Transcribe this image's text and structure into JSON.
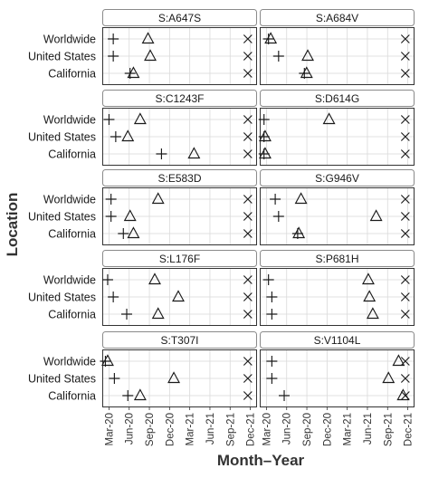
{
  "chart_data": {
    "type": "scatter",
    "facet_layout": "5 rows x 2 columns",
    "xlabel": "Month–Year",
    "ylabel": "Location",
    "x_axis": {
      "ticks": [
        "Mar-20",
        "Jun-20",
        "Sep-20",
        "Dec-20",
        "Mar-21",
        "Jun-21",
        "Sep-21",
        "Dec-21"
      ],
      "range": [
        "2020-02",
        "2022-01"
      ]
    },
    "y_categories": [
      "Worldwide",
      "United States",
      "California"
    ],
    "marker_shapes": {
      "first": "plus",
      "second": "triangle",
      "third": "x"
    },
    "grid": true,
    "legend": "none",
    "panels": [
      {
        "label": "S:A647S",
        "points": {
          "Worldwide": {
            "plus": "2020-03-20",
            "triangle": "2020-08-25",
            "x": "2021-11-20"
          },
          "United States": {
            "plus": "2020-03-20",
            "triangle": "2020-09-05",
            "x": "2021-11-20"
          },
          "California": {
            "plus": "2020-06-05",
            "triangle": "2020-06-20",
            "x": "2021-11-20"
          }
        }
      },
      {
        "label": "S:A684V",
        "points": {
          "Worldwide": {
            "plus": "2020-03-10",
            "triangle": "2020-03-20",
            "x": "2021-11-20"
          },
          "United States": {
            "plus": "2020-04-25",
            "triangle": "2020-09-05",
            "x": "2021-11-20"
          },
          "California": {
            "plus": "2020-08-20",
            "triangle": "2020-08-30",
            "x": "2021-11-20"
          }
        }
      },
      {
        "label": "S:C1243F",
        "points": {
          "Worldwide": {
            "plus": "2020-03-01",
            "triangle": "2020-07-20",
            "x": "2021-11-20"
          },
          "United States": {
            "plus": "2020-04-01",
            "triangle": "2020-05-25",
            "x": "2021-11-20"
          },
          "California": {
            "plus": "2020-10-25",
            "triangle": "2021-03-20",
            "x": "2021-11-20"
          }
        }
      },
      {
        "label": "S:D614G",
        "points": {
          "Worldwide": {
            "plus": "2020-02-20",
            "triangle": "2020-12-10",
            "x": "2021-11-20"
          },
          "United States": {
            "plus": "2020-02-20",
            "triangle": "2020-02-25",
            "x": "2021-11-20"
          },
          "California": {
            "plus": "2020-02-20",
            "triangle": "2020-02-25",
            "x": "2021-11-20"
          }
        }
      },
      {
        "label": "S:E583D",
        "points": {
          "Worldwide": {
            "plus": "2020-03-10",
            "triangle": "2020-10-10",
            "x": "2021-11-20"
          },
          "United States": {
            "plus": "2020-03-10",
            "triangle": "2020-06-05",
            "x": "2021-11-20"
          },
          "California": {
            "plus": "2020-05-05",
            "triangle": "2020-06-20",
            "x": "2021-11-20"
          }
        }
      },
      {
        "label": "S:G946V",
        "points": {
          "Worldwide": {
            "plus": "2020-04-10",
            "triangle": "2020-08-05",
            "x": "2021-11-20"
          },
          "United States": {
            "plus": "2020-04-25",
            "triangle": "2021-07-10",
            "x": "2021-11-20"
          },
          "California": {
            "plus": "2020-07-20",
            "triangle": "2020-07-25",
            "x": "2021-11-20"
          }
        }
      },
      {
        "label": "S:L176F",
        "points": {
          "Worldwide": {
            "plus": "2020-02-25",
            "triangle": "2020-09-25",
            "x": "2021-11-20"
          },
          "United States": {
            "plus": "2020-03-20",
            "triangle": "2021-01-10",
            "x": "2021-11-20"
          },
          "California": {
            "plus": "2020-05-20",
            "triangle": "2020-10-10",
            "x": "2021-11-20"
          }
        }
      },
      {
        "label": "S:P681H",
        "points": {
          "Worldwide": {
            "plus": "2020-03-10",
            "triangle": "2021-06-05",
            "x": "2021-11-20"
          },
          "United States": {
            "plus": "2020-03-25",
            "triangle": "2021-06-10",
            "x": "2021-11-20"
          },
          "California": {
            "plus": "2020-03-25",
            "triangle": "2021-06-25",
            "x": "2021-11-20"
          }
        }
      },
      {
        "label": "S:T307I",
        "points": {
          "Worldwide": {
            "plus": "2020-02-15",
            "triangle": "2020-02-25",
            "x": "2021-11-20"
          },
          "United States": {
            "plus": "2020-03-25",
            "triangle": "2020-12-20",
            "x": "2021-11-20"
          },
          "California": {
            "plus": "2020-05-25",
            "triangle": "2020-07-20",
            "x": "2021-11-20"
          }
        }
      },
      {
        "label": "S:V1104L",
        "points": {
          "Worldwide": {
            "plus": "2020-03-25",
            "triangle": "2021-10-20",
            "x": "2021-11-20"
          },
          "United States": {
            "plus": "2020-03-25",
            "triangle": "2021-09-05",
            "x": "2021-11-20"
          },
          "California": {
            "plus": "2020-05-20",
            "triangle": "2021-11-10",
            "x": "2021-11-20"
          }
        }
      }
    ]
  }
}
